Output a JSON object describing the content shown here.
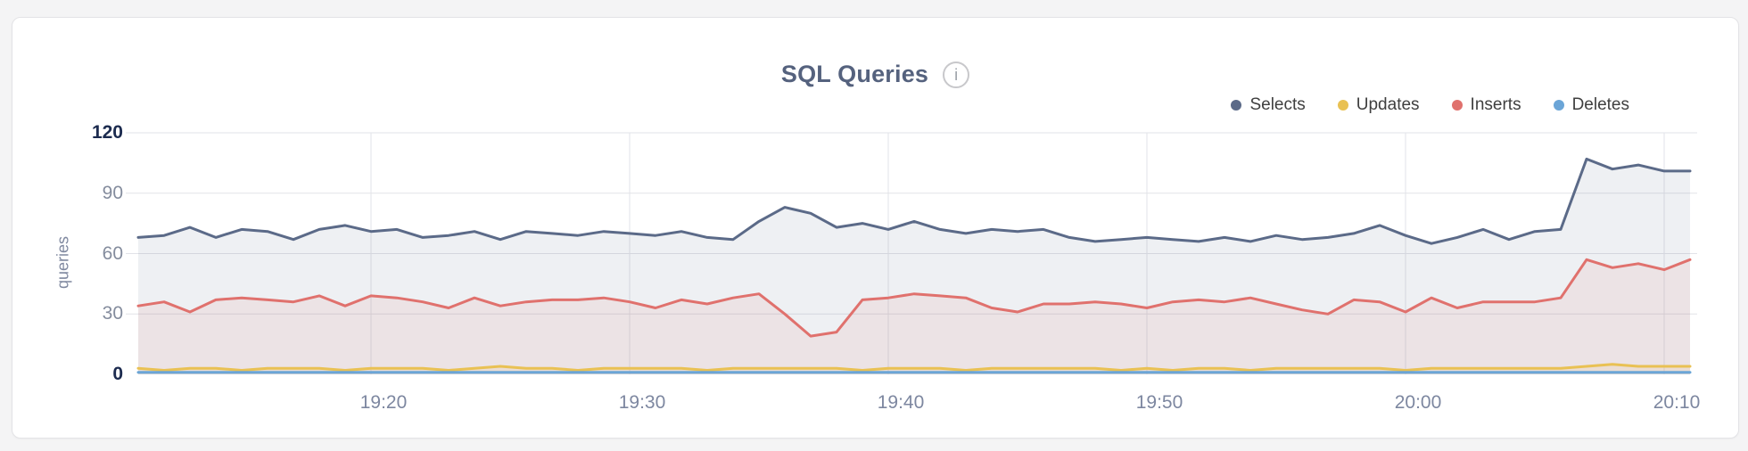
{
  "header": {
    "title": "SQL Queries",
    "info_icon_glyph": "i"
  },
  "chart_data": {
    "type": "area",
    "title": "SQL Queries",
    "xlabel": "",
    "ylabel": "queries",
    "ylim": [
      0,
      120
    ],
    "yticks": [
      0,
      30,
      60,
      90,
      120
    ],
    "ytick_emphasis": [
      0,
      120
    ],
    "xticks": [
      "19:20",
      "19:30",
      "19:40",
      "19:50",
      "20:00",
      "20:10"
    ],
    "grid": true,
    "legend_position": "top-right",
    "x_interval_minutes": 1,
    "x_times": [
      "19:11",
      "19:12",
      "19:13",
      "19:14",
      "19:15",
      "19:16",
      "19:17",
      "19:18",
      "19:19",
      "19:20",
      "19:21",
      "19:22",
      "19:23",
      "19:24",
      "19:25",
      "19:26",
      "19:27",
      "19:28",
      "19:29",
      "19:30",
      "19:31",
      "19:32",
      "19:33",
      "19:34",
      "19:35",
      "19:36",
      "19:37",
      "19:38",
      "19:39",
      "19:40",
      "19:41",
      "19:42",
      "19:43",
      "19:44",
      "19:45",
      "19:46",
      "19:47",
      "19:48",
      "19:49",
      "19:50",
      "19:51",
      "19:52",
      "19:53",
      "19:54",
      "19:55",
      "19:56",
      "19:57",
      "19:58",
      "19:59",
      "20:00",
      "20:01",
      "20:02",
      "20:03",
      "20:04",
      "20:05",
      "20:06",
      "20:07",
      "20:08",
      "20:09",
      "20:10",
      "20:11"
    ],
    "series": [
      {
        "name": "Selects",
        "color": "#5b6a88",
        "fill_opacity": 0.1,
        "values": [
          68,
          69,
          73,
          68,
          72,
          71,
          67,
          72,
          74,
          71,
          72,
          68,
          69,
          71,
          67,
          71,
          70,
          69,
          71,
          70,
          69,
          71,
          68,
          67,
          76,
          83,
          80,
          73,
          75,
          72,
          76,
          72,
          70,
          72,
          71,
          72,
          68,
          66,
          67,
          68,
          67,
          66,
          68,
          66,
          69,
          67,
          68,
          70,
          74,
          69,
          65,
          68,
          72,
          67,
          71,
          72,
          107,
          102,
          104,
          101,
          101
        ]
      },
      {
        "name": "Updates",
        "color": "#e9c153",
        "fill_opacity": 0.12,
        "values": [
          3,
          2,
          3,
          3,
          2,
          3,
          3,
          3,
          2,
          3,
          3,
          3,
          2,
          3,
          4,
          3,
          3,
          2,
          3,
          3,
          3,
          3,
          2,
          3,
          3,
          3,
          3,
          3,
          2,
          3,
          3,
          3,
          2,
          3,
          3,
          3,
          3,
          3,
          2,
          3,
          2,
          3,
          3,
          2,
          3,
          3,
          3,
          3,
          3,
          2,
          3,
          3,
          3,
          3,
          3,
          3,
          4,
          5,
          4,
          4,
          4
        ]
      },
      {
        "name": "Inserts",
        "color": "#e0716d",
        "fill_opacity": 0.1,
        "values": [
          34,
          36,
          31,
          37,
          38,
          37,
          36,
          39,
          34,
          39,
          38,
          36,
          33,
          38,
          34,
          36,
          37,
          37,
          38,
          36,
          33,
          37,
          35,
          38,
          40,
          30,
          19,
          21,
          37,
          38,
          40,
          39,
          38,
          33,
          31,
          35,
          35,
          36,
          35,
          33,
          36,
          37,
          36,
          38,
          35,
          32,
          30,
          37,
          36,
          31,
          38,
          33,
          36,
          36,
          36,
          38,
          57,
          53,
          55,
          52,
          57
        ]
      },
      {
        "name": "Deletes",
        "color": "#6ba5d7",
        "fill_opacity": 0.12,
        "values": [
          1,
          1,
          1,
          1,
          1,
          1,
          1,
          1,
          1,
          1,
          1,
          1,
          1,
          1,
          1,
          1,
          1,
          1,
          1,
          1,
          1,
          1,
          1,
          1,
          1,
          1,
          1,
          1,
          1,
          1,
          1,
          1,
          1,
          1,
          1,
          1,
          1,
          1,
          1,
          1,
          1,
          1,
          1,
          1,
          1,
          1,
          1,
          1,
          1,
          1,
          1,
          1,
          1,
          1,
          1,
          1,
          1,
          1,
          1,
          1,
          1
        ]
      }
    ]
  },
  "ui_colors": {
    "page_bg": "#f4f4f5",
    "card_bg": "#ffffff",
    "card_border": "#e3e3e6",
    "grid": "#e2e3e8",
    "title_text": "#55627e",
    "tick_strong": "#1c2b4f",
    "tick_muted": "#848c9d",
    "x_tick_text": "#7d87a0",
    "legend_text": "#3f3f3f"
  }
}
